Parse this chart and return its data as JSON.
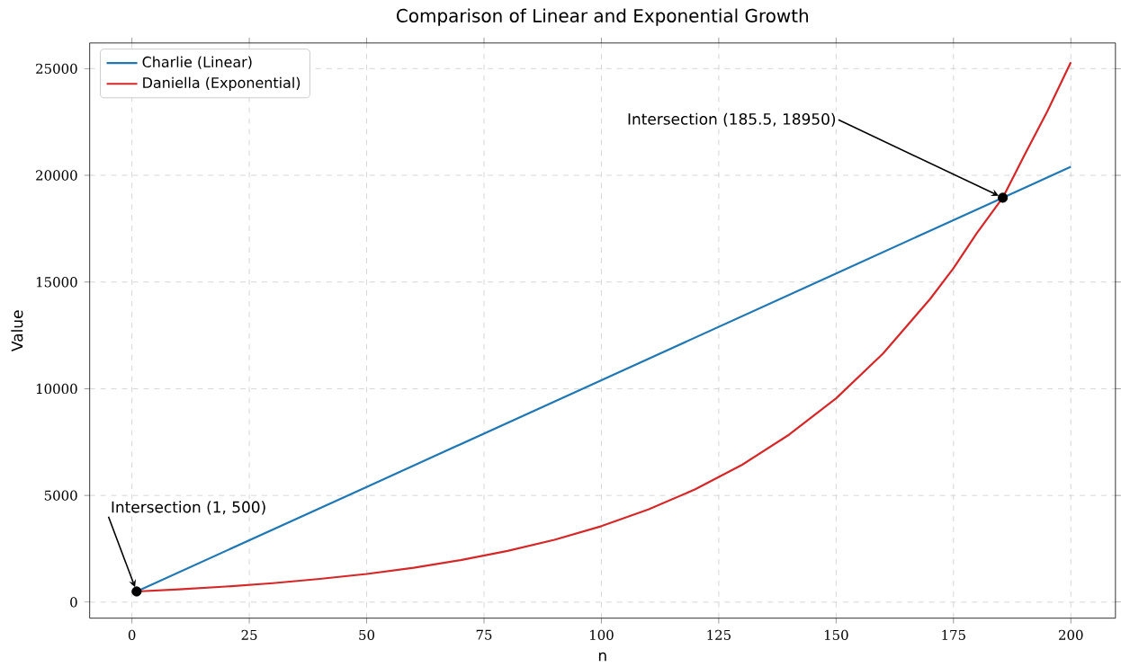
{
  "chart_data": {
    "type": "line",
    "title": "Comparison of Linear and Exponential Growth",
    "xlabel": "n",
    "ylabel": "Value",
    "xlim": [
      -9,
      209.5
    ],
    "ylim": [
      -750,
      26200
    ],
    "xticks": [
      0,
      25,
      50,
      75,
      100,
      125,
      150,
      175,
      200
    ],
    "yticks": [
      0,
      5000,
      10000,
      15000,
      20000,
      25000
    ],
    "grid": true,
    "legend": "top left",
    "series": [
      {
        "name": "Charlie (Linear)",
        "color": "#1f77b4",
        "x": [
          1,
          50,
          100,
          150,
          185.5,
          200
        ],
        "values": [
          500,
          5400,
          10400,
          15400,
          18950,
          20400
        ]
      },
      {
        "name": "Daniella (Exponential)",
        "color": "#d62728",
        "x": [
          1,
          10,
          20,
          30,
          40,
          50,
          60,
          70,
          80,
          90,
          100,
          110,
          120,
          130,
          140,
          150,
          160,
          170,
          175,
          180,
          185.5,
          190,
          195,
          200
        ],
        "values": [
          500,
          600,
          730,
          890,
          1090,
          1320,
          1610,
          1970,
          2400,
          2920,
          3560,
          4340,
          5290,
          6440,
          7850,
          9550,
          11650,
          14200,
          15650,
          17300,
          18950,
          20900,
          23000,
          25300
        ]
      },
      {
        "type": "scatter",
        "color": "#000000",
        "x": [
          1,
          185.5
        ],
        "values": [
          500,
          18950
        ]
      }
    ],
    "annotations": [
      "Intersection (1, 500)",
      "Intersection (185.5, 18950)"
    ]
  }
}
